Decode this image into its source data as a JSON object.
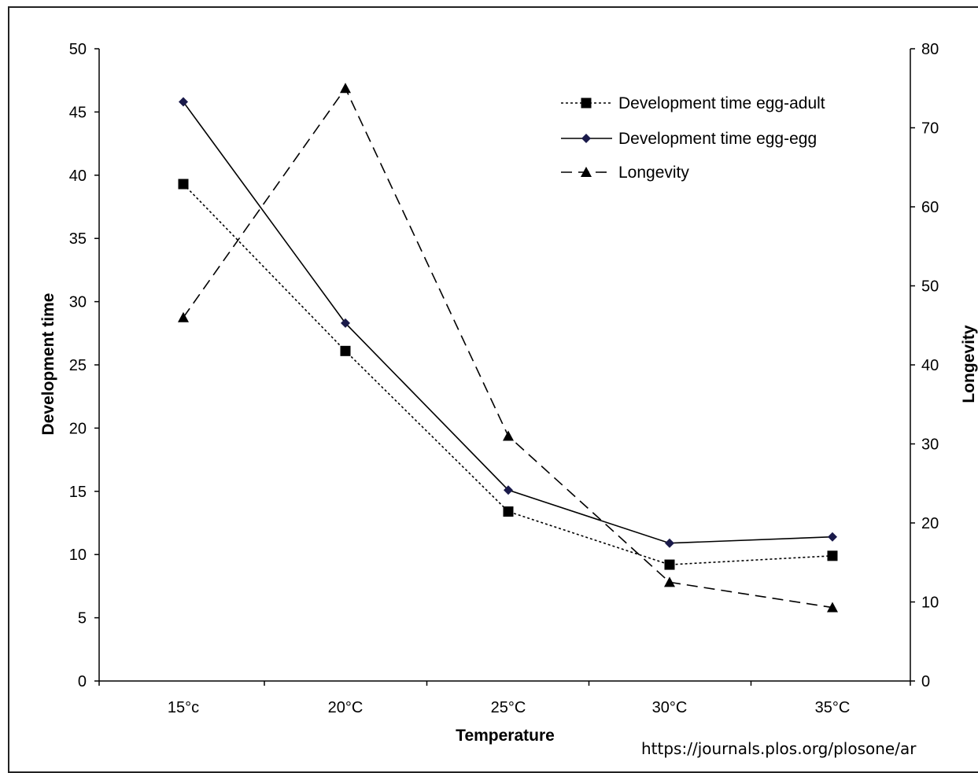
{
  "source_url": "https://journals.plos.org/plosone/ar",
  "chart_data": {
    "type": "line",
    "title": "",
    "xlabel": "Temperature",
    "ylabel": "Development time",
    "y2label": "Longevity",
    "categories": [
      "15°c",
      "20°C",
      "25°C",
      "30°C",
      "35°C"
    ],
    "ylim": [
      0,
      50
    ],
    "y2lim": [
      0,
      80
    ],
    "yticks": [
      0,
      5,
      10,
      15,
      20,
      25,
      30,
      35,
      40,
      45,
      50
    ],
    "y2ticks": [
      0,
      10,
      20,
      30,
      40,
      50,
      60,
      70,
      80
    ],
    "grid": false,
    "legend_position": "top-right",
    "series": [
      {
        "name": "Development time egg-adult",
        "axis": "left",
        "values": [
          39.3,
          26.1,
          13.4,
          9.2,
          9.9
        ],
        "marker": "square",
        "line_style": "dotted",
        "color": "#000000"
      },
      {
        "name": "Development time egg-egg",
        "axis": "left",
        "values": [
          45.8,
          28.3,
          15.1,
          10.9,
          11.4
        ],
        "marker": "diamond",
        "line_style": "solid",
        "color": "#1a1a4a"
      },
      {
        "name": "Longevity",
        "axis": "right",
        "values": [
          46,
          75,
          31,
          12.5,
          9.3
        ],
        "marker": "triangle",
        "line_style": "dashed",
        "color": "#000000"
      }
    ]
  }
}
